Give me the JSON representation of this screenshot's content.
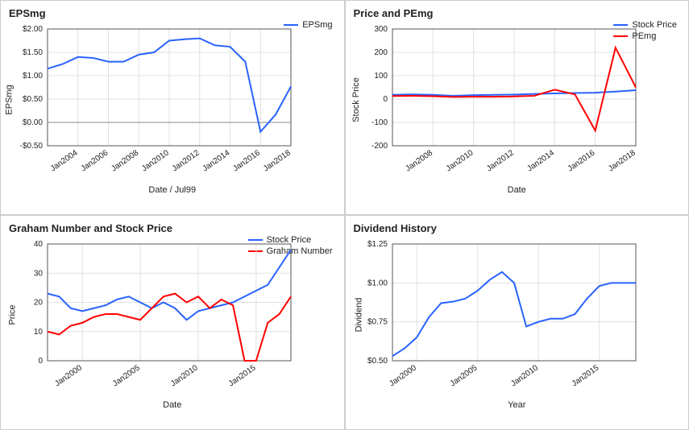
{
  "panels": {
    "epsmg": {
      "title": "EPSmg",
      "type": "line",
      "background_color": "#ffffff",
      "grid_color": "#e0e0e0",
      "axis_color": "#555555",
      "zero_line_color": "#888888",
      "title_fontsize": 13,
      "label_fontsize": 11,
      "tick_fontsize": 10,
      "line_width": 2,
      "ylabel": "EPSmg",
      "xlabel": "Date / Jul99",
      "legend": [
        {
          "label": "EPSmg",
          "color": "#2962ff"
        }
      ],
      "series": [
        {
          "name": "EPSmg",
          "color": "#2962ff",
          "x": [
            2002,
            2003,
            2004,
            2005,
            2006,
            2007,
            2008,
            2009,
            2010,
            2011,
            2012,
            2013,
            2014,
            2015,
            2016,
            2017,
            2018
          ],
          "y": [
            1.15,
            1.25,
            1.4,
            1.38,
            1.3,
            1.3,
            1.45,
            1.5,
            1.75,
            1.78,
            1.8,
            1.65,
            1.62,
            1.3,
            -0.2,
            0.17,
            0.77
          ]
        }
      ],
      "ylim": [
        -0.5,
        2.0
      ],
      "yticks": [
        -0.5,
        0.0,
        0.5,
        1.0,
        1.5,
        2.0
      ],
      "ytick_labels": [
        "-$0.50",
        "$0.00",
        "$0.50",
        "$1.00",
        "$1.50",
        "$2.00"
      ],
      "xlim": [
        2002,
        2018
      ],
      "xticks": [
        2004,
        2006,
        2008,
        2010,
        2012,
        2014,
        2016,
        2018
      ],
      "xtick_labels": [
        "Jan2004",
        "Jan2006",
        "Jan2008",
        "Jan2010",
        "Jan2012",
        "Jan2014",
        "Jan2016",
        "Jan2018"
      ]
    },
    "price_pemg": {
      "title": "Price and PEmg",
      "type": "line",
      "background_color": "#ffffff",
      "grid_color": "#e0e0e0",
      "axis_color": "#555555",
      "title_fontsize": 13,
      "label_fontsize": 11,
      "tick_fontsize": 10,
      "line_width": 2,
      "ylabel": "Stock Price",
      "xlabel": "Date",
      "legend": [
        {
          "label": "Stock Price",
          "color": "#2962ff"
        },
        {
          "label": "PEmg",
          "color": "#ff0000"
        }
      ],
      "series": [
        {
          "name": "Stock Price",
          "color": "#2962ff",
          "x": [
            2006,
            2007,
            2008,
            2009,
            2010,
            2011,
            2012,
            2013,
            2014,
            2015,
            2016,
            2017,
            2018
          ],
          "y": [
            18,
            20,
            18,
            14,
            17,
            18,
            19,
            22,
            24,
            26,
            27,
            32,
            38
          ]
        },
        {
          "name": "PEmg",
          "color": "#ff0000",
          "x": [
            2006,
            2007,
            2008,
            2009,
            2010,
            2011,
            2012,
            2013,
            2014,
            2015,
            2016,
            2017,
            2018
          ],
          "y": [
            13,
            14,
            12,
            9,
            10,
            10,
            11,
            14,
            40,
            20,
            -135,
            220,
            50
          ]
        }
      ],
      "ylim": [
        -200,
        300
      ],
      "yticks": [
        -200,
        -100,
        0,
        100,
        200,
        300
      ],
      "ytick_labels": [
        "-200",
        "-100",
        "0",
        "100",
        "200",
        "300"
      ],
      "xlim": [
        2006,
        2018
      ],
      "xticks": [
        2008,
        2010,
        2012,
        2014,
        2016,
        2018
      ],
      "xtick_labels": [
        "Jan2008",
        "Jan2010",
        "Jan2012",
        "Jan2014",
        "Jan2016",
        "Jan2018"
      ]
    },
    "graham": {
      "title": "Graham Number and Stock Price",
      "type": "line",
      "background_color": "#ffffff",
      "grid_color": "#e0e0e0",
      "axis_color": "#555555",
      "title_fontsize": 13,
      "label_fontsize": 11,
      "tick_fontsize": 10,
      "line_width": 2,
      "ylabel": "Price",
      "xlabel": "Date",
      "legend": [
        {
          "label": "Stock Price",
          "color": "#2962ff"
        },
        {
          "label": "Graham Number",
          "color": "#ff0000"
        }
      ],
      "series": [
        {
          "name": "Stock Price",
          "color": "#2962ff",
          "x": [
            1997,
            1998,
            1999,
            2000,
            2001,
            2002,
            2003,
            2004,
            2005,
            2006,
            2007,
            2008,
            2009,
            2010,
            2011,
            2012,
            2013,
            2014,
            2015,
            2016,
            2017,
            2018
          ],
          "y": [
            23,
            22,
            18,
            17,
            18,
            19,
            21,
            22,
            20,
            18,
            20,
            18,
            14,
            17,
            18,
            19,
            20,
            22,
            24,
            26,
            32,
            38
          ]
        },
        {
          "name": "Graham Number",
          "color": "#ff0000",
          "x": [
            1997,
            1998,
            1999,
            2000,
            2001,
            2002,
            2003,
            2004,
            2005,
            2006,
            2007,
            2008,
            2009,
            2010,
            2011,
            2012,
            2013,
            2014,
            2015,
            2016,
            2017,
            2018
          ],
          "y": [
            10,
            9,
            12,
            13,
            15,
            16,
            16,
            15,
            14,
            18,
            22,
            23,
            20,
            22,
            18,
            21,
            19,
            0,
            0,
            13,
            16,
            22
          ]
        }
      ],
      "ylim": [
        0,
        40
      ],
      "yticks": [
        0,
        10,
        20,
        30,
        40
      ],
      "ytick_labels": [
        "0",
        "10",
        "20",
        "30",
        "40"
      ],
      "xlim": [
        1997,
        2018
      ],
      "xticks": [
        2000,
        2005,
        2010,
        2015
      ],
      "xtick_labels": [
        "Jan2000",
        "Jan2005",
        "Jan2010",
        "Jan2015"
      ]
    },
    "dividend": {
      "title": "Dividend History",
      "type": "line",
      "background_color": "#ffffff",
      "grid_color": "#e0e0e0",
      "axis_color": "#555555",
      "title_fontsize": 13,
      "label_fontsize": 11,
      "tick_fontsize": 10,
      "line_width": 2,
      "ylabel": "Dividend",
      "xlabel": "Year",
      "legend": [],
      "series": [
        {
          "name": "Dividend",
          "color": "#2962ff",
          "x": [
            1998,
            1999,
            2000,
            2001,
            2002,
            2003,
            2004,
            2005,
            2006,
            2007,
            2008,
            2009,
            2010,
            2011,
            2012,
            2013,
            2014,
            2015,
            2016,
            2017,
            2018
          ],
          "y": [
            0.53,
            0.58,
            0.65,
            0.78,
            0.87,
            0.88,
            0.9,
            0.95,
            1.02,
            1.07,
            1.0,
            0.72,
            0.75,
            0.77,
            0.77,
            0.8,
            0.9,
            0.98,
            1.0,
            1.0,
            1.0
          ]
        }
      ],
      "ylim": [
        0.5,
        1.25
      ],
      "yticks": [
        0.5,
        0.75,
        1.0,
        1.25
      ],
      "ytick_labels": [
        "$0.50",
        "$0.75",
        "$1.00",
        "$1.25"
      ],
      "xlim": [
        1998,
        2018
      ],
      "xticks": [
        2000,
        2005,
        2010,
        2015
      ],
      "xtick_labels": [
        "Jan2000",
        "Jan2005",
        "Jan2010",
        "Jan2015"
      ]
    }
  }
}
